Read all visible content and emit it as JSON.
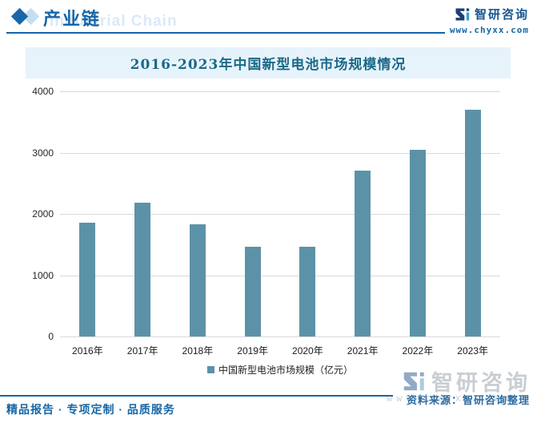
{
  "header": {
    "title": "产业链",
    "watermark": "Industrial Chain",
    "brand_name": "智研咨询",
    "brand_url": "www.chyxx.com"
  },
  "chart_data": {
    "type": "bar",
    "title": "2016-2023年中国新型电池市场规模情况",
    "categories": [
      "2016年",
      "2017年",
      "2018年",
      "2019年",
      "2020年",
      "2021年",
      "2022年",
      "2023年"
    ],
    "values": [
      1850,
      2180,
      1830,
      1470,
      1470,
      2700,
      3050,
      3700
    ],
    "series_name": "中国新型电池市场规模（亿元）",
    "xlabel": "",
    "ylabel": "",
    "ylim": [
      0,
      4000
    ],
    "yticks": [
      0,
      1000,
      2000,
      3000,
      4000
    ],
    "grid": true,
    "legend_position": "bottom",
    "bar_color": "#5c92a8"
  },
  "source_line": "资料来源：智研咨询整理",
  "watermark_bottom": {
    "brand": "智研咨询",
    "url": "www.chyxx.com"
  },
  "footer": {
    "tagline": "精品报告 · 专项定制 · 品质服务"
  },
  "colors": {
    "accent_blue": "#1566a5",
    "bar": "#5c92a8",
    "title_band_bg": "#e7f3fb",
    "title_text": "#1b6988",
    "grid": "#d9d9d9",
    "watermark_gray": "#c9ced3"
  }
}
